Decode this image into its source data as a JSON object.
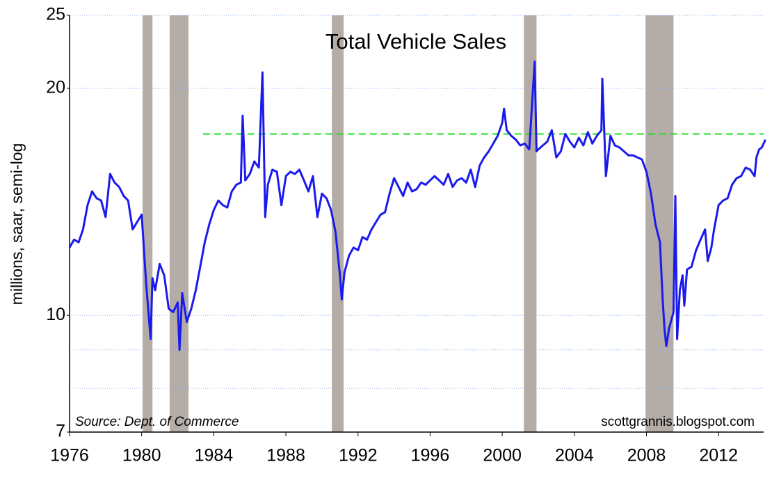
{
  "chart_data": {
    "type": "line",
    "title": "Total Vehicle Sales",
    "y_label": "millions, saar, semi-log",
    "source": "Source:  Dept. of Commerce",
    "watermark": "scottgrannis.blogspot.com",
    "log_y": true,
    "grid": true,
    "xlim": [
      1976,
      2014.5
    ],
    "xticks": [
      1976,
      1980,
      1984,
      1988,
      1992,
      1996,
      2000,
      2004,
      2008,
      2012
    ],
    "ylim": [
      7,
      25
    ],
    "yticks": [
      7,
      10,
      20,
      25
    ],
    "y_minor_grid": [
      8,
      9
    ],
    "recessions": [
      [
        1980.05,
        1980.6
      ],
      [
        1981.55,
        1982.6
      ],
      [
        1990.55,
        1991.2
      ],
      [
        2001.2,
        2001.9
      ],
      [
        2007.95,
        2009.5
      ]
    ],
    "recession_color": "#b4aca6",
    "reference_line": {
      "value": 17.4,
      "start": 1983.4,
      "color": "#22dd22"
    },
    "series": [
      {
        "name": "Total Vehicle Sales",
        "color": "#1a1aee",
        "x": [
          1976,
          1976.25,
          1976.5,
          1976.75,
          1977,
          1977.25,
          1977.5,
          1977.75,
          1978,
          1978.25,
          1978.5,
          1978.75,
          1979,
          1979.25,
          1979.5,
          1979.75,
          1980,
          1980.25,
          1980.5,
          1980.6,
          1980.75,
          1981,
          1981.25,
          1981.5,
          1981.75,
          1982,
          1982.1,
          1982.25,
          1982.5,
          1982.75,
          1983,
          1983.25,
          1983.5,
          1983.75,
          1984,
          1984.25,
          1984.5,
          1984.75,
          1985,
          1985.25,
          1985.5,
          1985.6,
          1985.75,
          1986,
          1986.25,
          1986.5,
          1986.7,
          1986.85,
          1987,
          1987.25,
          1987.5,
          1987.75,
          1988,
          1988.25,
          1988.5,
          1988.75,
          1989,
          1989.25,
          1989.5,
          1989.75,
          1990,
          1990.25,
          1990.5,
          1990.75,
          1991,
          1991.1,
          1991.25,
          1991.5,
          1991.75,
          1992,
          1992.25,
          1992.5,
          1992.75,
          1993,
          1993.25,
          1993.5,
          1993.75,
          1994,
          1994.25,
          1994.5,
          1994.75,
          1995,
          1995.25,
          1995.5,
          1995.75,
          1996,
          1996.25,
          1996.5,
          1996.75,
          1997,
          1997.25,
          1997.5,
          1997.75,
          1998,
          1998.25,
          1998.5,
          1998.75,
          1999,
          1999.25,
          1999.5,
          1999.75,
          2000,
          2000.1,
          2000.25,
          2000.5,
          2000.75,
          2001,
          2001.25,
          2001.5,
          2001.8,
          2001.9,
          2002,
          2002.25,
          2002.5,
          2002.75,
          2003,
          2003.25,
          2003.5,
          2003.75,
          2004,
          2004.25,
          2004.5,
          2004.75,
          2005,
          2005.25,
          2005.5,
          2005.55,
          2005.75,
          2006,
          2006.25,
          2006.5,
          2006.75,
          2007,
          2007.25,
          2007.5,
          2007.75,
          2008,
          2008.25,
          2008.5,
          2008.75,
          2008.9,
          2009,
          2009.1,
          2009.25,
          2009.5,
          2009.6,
          2009.7,
          2009.85,
          2010,
          2010.1,
          2010.25,
          2010.5,
          2010.75,
          2011,
          2011.25,
          2011.4,
          2011.6,
          2011.75,
          2012,
          2012.25,
          2012.5,
          2012.75,
          2013,
          2013.25,
          2013.5,
          2013.75,
          2014,
          2014.1,
          2014.25,
          2014.4,
          2014.6
        ],
        "values": [
          12.3,
          12.6,
          12.5,
          13.0,
          14.0,
          14.6,
          14.3,
          14.2,
          13.5,
          15.4,
          15.0,
          14.8,
          14.4,
          14.2,
          13.0,
          13.3,
          13.6,
          11.0,
          9.3,
          11.2,
          10.8,
          11.7,
          11.3,
          10.2,
          10.1,
          10.4,
          9.0,
          10.7,
          9.8,
          10.2,
          10.8,
          11.6,
          12.5,
          13.2,
          13.8,
          14.2,
          14.0,
          13.9,
          14.6,
          14.9,
          15.0,
          18.4,
          15.1,
          15.4,
          16.0,
          15.7,
          21.0,
          13.5,
          14.9,
          15.6,
          15.5,
          14.0,
          15.3,
          15.5,
          15.4,
          15.6,
          15.1,
          14.6,
          15.3,
          13.5,
          14.5,
          14.3,
          13.8,
          12.9,
          11.3,
          10.5,
          11.4,
          12.0,
          12.3,
          12.2,
          12.7,
          12.6,
          13.0,
          13.3,
          13.6,
          13.7,
          14.5,
          15.2,
          14.8,
          14.4,
          15.0,
          14.6,
          14.7,
          15.0,
          14.9,
          15.1,
          15.3,
          15.1,
          14.9,
          15.4,
          14.8,
          15.1,
          15.2,
          15.0,
          15.6,
          14.8,
          15.8,
          16.2,
          16.5,
          16.9,
          17.3,
          18.0,
          18.8,
          17.6,
          17.3,
          17.1,
          16.8,
          16.9,
          16.6,
          21.7,
          16.5,
          16.6,
          16.8,
          17.0,
          17.6,
          16.2,
          16.5,
          17.4,
          17.0,
          16.7,
          17.2,
          16.8,
          17.5,
          16.9,
          17.3,
          17.6,
          20.6,
          15.3,
          17.3,
          16.8,
          16.7,
          16.5,
          16.3,
          16.3,
          16.2,
          16.1,
          15.5,
          14.5,
          13.2,
          12.5,
          10.5,
          9.6,
          9.1,
          9.6,
          10.1,
          14.4,
          9.3,
          10.8,
          11.3,
          10.3,
          11.5,
          11.6,
          12.2,
          12.6,
          13.0,
          11.8,
          12.3,
          13.0,
          14.0,
          14.2,
          14.3,
          14.9,
          15.2,
          15.3,
          15.7,
          15.6,
          15.3,
          16.2,
          16.6,
          16.7,
          17.1
        ]
      }
    ]
  }
}
